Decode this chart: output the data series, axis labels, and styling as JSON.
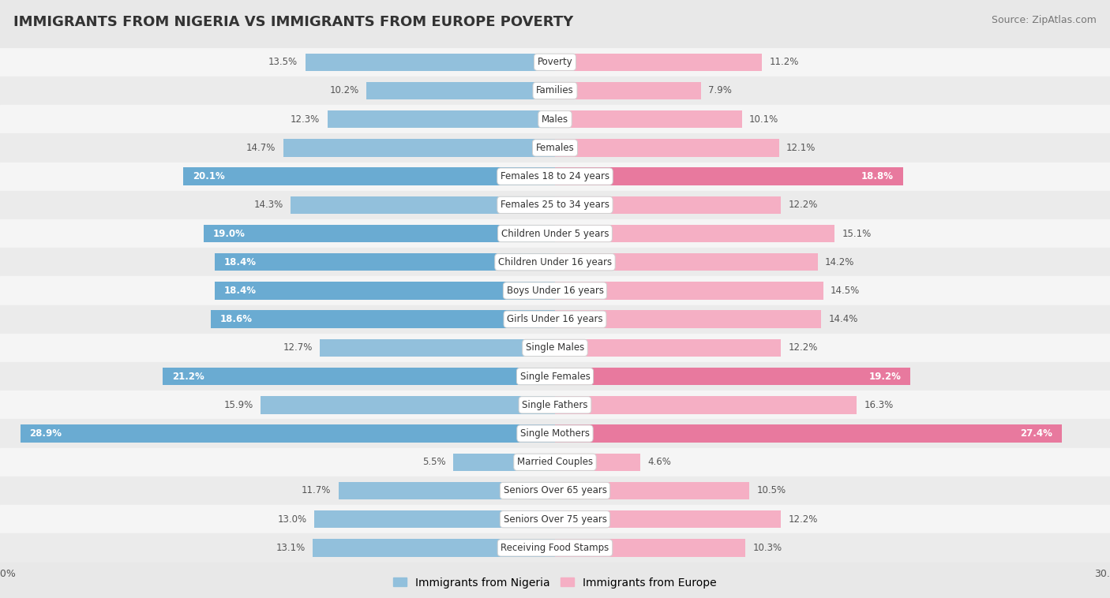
{
  "title": "IMMIGRANTS FROM NIGERIA VS IMMIGRANTS FROM EUROPE POVERTY",
  "source": "Source: ZipAtlas.com",
  "categories": [
    "Poverty",
    "Families",
    "Males",
    "Females",
    "Females 18 to 24 years",
    "Females 25 to 34 years",
    "Children Under 5 years",
    "Children Under 16 years",
    "Boys Under 16 years",
    "Girls Under 16 years",
    "Single Males",
    "Single Females",
    "Single Fathers",
    "Single Mothers",
    "Married Couples",
    "Seniors Over 65 years",
    "Seniors Over 75 years",
    "Receiving Food Stamps"
  ],
  "nigeria_values": [
    13.5,
    10.2,
    12.3,
    14.7,
    20.1,
    14.3,
    19.0,
    18.4,
    18.4,
    18.6,
    12.7,
    21.2,
    15.9,
    28.9,
    5.5,
    11.7,
    13.0,
    13.1
  ],
  "europe_values": [
    11.2,
    7.9,
    10.1,
    12.1,
    18.8,
    12.2,
    15.1,
    14.2,
    14.5,
    14.4,
    12.2,
    19.2,
    16.3,
    27.4,
    4.6,
    10.5,
    12.2,
    10.3
  ],
  "nigeria_highlight_indices": [
    4,
    6,
    7,
    8,
    9,
    11,
    13
  ],
  "europe_highlight_indices": [
    4,
    11,
    13
  ],
  "nigeria_color_normal": "#92c0dc",
  "nigeria_color_highlight": "#6aabd2",
  "europe_color_normal": "#f5afc4",
  "europe_color_highlight": "#e8799e",
  "bar_height": 0.62,
  "xlim": 30.0,
  "bg_color": "#e8e8e8",
  "row_bg_odd": "#f5f5f5",
  "row_bg_even": "#ebebeb",
  "title_fontsize": 13,
  "source_fontsize": 9,
  "label_fontsize": 8.5,
  "cat_fontsize": 8.5
}
